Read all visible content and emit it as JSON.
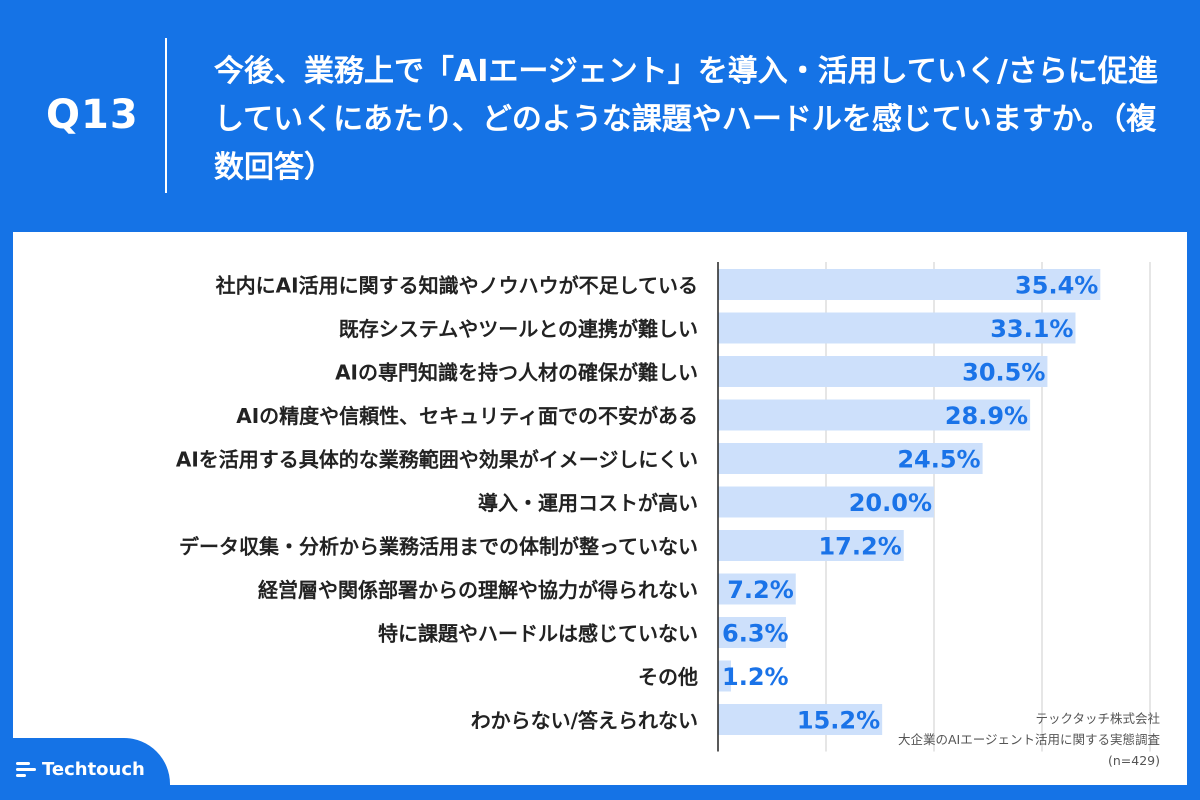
{
  "header": {
    "question_number": "Q13",
    "title": "今後、業務上で「AIエージェント」を導入・活用していく/さらに促進していくにあたり、どのような課題やハードルを感じていますか。（複数回答）"
  },
  "source": {
    "company": "テックタッチ株式会社",
    "survey": "大企業のAIエージェント活用に関する実態調査",
    "sample": "(n=429)"
  },
  "brand": {
    "logo_text": "Techtouch",
    "logo_icon": "lines-icon"
  },
  "colors": {
    "header_bg": "#1573e6",
    "bar": "#cde0fb",
    "value_text": "#1a73e8",
    "label_text": "#222222",
    "grid": "#cccccc"
  },
  "chart_data": {
    "type": "bar",
    "orientation": "horizontal",
    "categories": [
      "社内にAI活用に関する知識やノウハウが不足している",
      "既存システムやツールとの連携が難しい",
      "AIの専門知識を持つ人材の確保が難しい",
      "AIの精度や信頼性、セキュリティ面での不安がある",
      "AIを活用する具体的な業務範囲や効果がイメージしにくい",
      "導入・運用コストが高い",
      "データ収集・分析から業務活用までの体制が整っていない",
      "経営層や関係部署からの理解や協力が得られない",
      "特に課題やハードルは感じていない",
      "その他",
      "わからない/答えられない"
    ],
    "values": [
      35.4,
      33.1,
      30.5,
      28.9,
      24.5,
      20.0,
      17.2,
      7.2,
      6.3,
      1.2,
      15.2
    ],
    "value_labels": [
      "35.4%",
      "33.1%",
      "30.5%",
      "28.9%",
      "24.5%",
      "20.0%",
      "17.2%",
      "7.2%",
      "6.3%",
      "1.2%",
      "15.2%"
    ],
    "xlim": [
      0,
      40
    ],
    "grid": true,
    "grid_values": [
      10,
      20,
      30,
      40
    ]
  }
}
